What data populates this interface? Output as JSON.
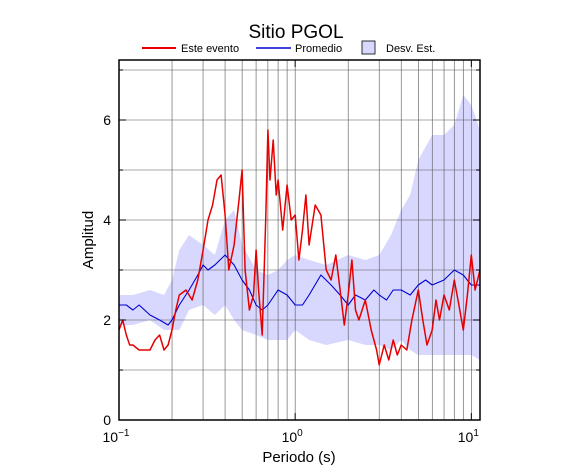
{
  "chart_data": {
    "type": "line",
    "title": "Sitio PGOL",
    "xlabel": "Periodo (s)",
    "ylabel": "Amplitud",
    "x_scale": "log",
    "xlim": [
      0.1,
      11.2
    ],
    "ylim": [
      0,
      7.2
    ],
    "x_ticks": [
      {
        "value": 0.1,
        "base": "10",
        "exp": "−1"
      },
      {
        "value": 1,
        "base": "10",
        "exp": "0"
      },
      {
        "value": 10,
        "base": "10",
        "exp": "1"
      }
    ],
    "y_ticks": [
      {
        "value": 0,
        "label": "0"
      },
      {
        "value": 2,
        "label": "2"
      },
      {
        "value": 4,
        "label": "4"
      },
      {
        "value": 6,
        "label": "6"
      }
    ],
    "y_minor_ticks": [
      1,
      3,
      5,
      7
    ],
    "grid": true,
    "legend_position": "top",
    "legend": [
      {
        "label": "Este evento",
        "kind": "line",
        "color": "#e60000"
      },
      {
        "label": "Promedio",
        "kind": "line",
        "color": "#0000d0"
      },
      {
        "label": "Desv. Est.",
        "kind": "box",
        "color": "#d8d8ff"
      }
    ],
    "band": {
      "name": "Desv. Est.",
      "color": "#d8d8ff",
      "x": [
        0.1,
        0.12,
        0.15,
        0.18,
        0.2,
        0.22,
        0.25,
        0.3,
        0.35,
        0.4,
        0.45,
        0.5,
        0.6,
        0.7,
        0.8,
        0.9,
        1.0,
        1.2,
        1.5,
        2.0,
        2.5,
        3.0,
        3.5,
        4.0,
        4.5,
        5.0,
        6.0,
        7.0,
        8.0,
        9.0,
        10.0,
        11.2
      ],
      "upper": [
        2.5,
        2.5,
        2.6,
        2.5,
        2.8,
        3.4,
        3.7,
        3.5,
        3.3,
        4.0,
        4.2,
        3.5,
        3.0,
        2.9,
        3.0,
        3.2,
        3.3,
        3.2,
        3.1,
        3.3,
        3.2,
        3.3,
        3.7,
        4.2,
        4.5,
        5.2,
        5.7,
        5.7,
        5.9,
        6.5,
        6.3,
        5.8
      ],
      "lower": [
        1.9,
        1.9,
        2.0,
        1.8,
        1.8,
        1.8,
        2.2,
        2.3,
        2.1,
        2.3,
        2.0,
        1.8,
        1.7,
        1.6,
        1.6,
        1.6,
        1.8,
        1.6,
        1.5,
        1.6,
        1.5,
        1.5,
        1.4,
        1.6,
        1.4,
        1.3,
        1.3,
        1.3,
        1.3,
        1.3,
        1.3,
        1.2
      ]
    },
    "series": [
      {
        "name": "Promedio",
        "color": "#0000d0",
        "x": [
          0.1,
          0.11,
          0.12,
          0.13,
          0.15,
          0.17,
          0.19,
          0.2,
          0.22,
          0.25,
          0.28,
          0.3,
          0.32,
          0.35,
          0.4,
          0.45,
          0.5,
          0.55,
          0.6,
          0.65,
          0.7,
          0.8,
          0.9,
          1.0,
          1.1,
          1.2,
          1.4,
          1.6,
          1.8,
          2.0,
          2.2,
          2.5,
          2.8,
          3.0,
          3.3,
          3.6,
          4.0,
          4.5,
          5.0,
          5.5,
          6.0,
          7.0,
          8.0,
          9.0,
          10.0,
          11.2
        ],
        "y": [
          2.3,
          2.3,
          2.2,
          2.3,
          2.1,
          2.0,
          1.9,
          2.0,
          2.3,
          2.6,
          2.9,
          3.1,
          3.0,
          3.1,
          3.3,
          3.1,
          2.8,
          2.6,
          2.3,
          2.2,
          2.3,
          2.6,
          2.5,
          2.3,
          2.3,
          2.5,
          2.9,
          2.7,
          2.5,
          2.3,
          2.5,
          2.4,
          2.6,
          2.5,
          2.4,
          2.6,
          2.6,
          2.5,
          2.7,
          2.8,
          2.7,
          2.8,
          3.0,
          2.9,
          2.7,
          2.7
        ]
      },
      {
        "name": "Este evento",
        "color": "#e60000",
        "x": [
          0.1,
          0.105,
          0.11,
          0.115,
          0.12,
          0.13,
          0.14,
          0.15,
          0.16,
          0.17,
          0.18,
          0.19,
          0.2,
          0.21,
          0.22,
          0.24,
          0.26,
          0.28,
          0.3,
          0.32,
          0.34,
          0.36,
          0.38,
          0.4,
          0.42,
          0.45,
          0.48,
          0.5,
          0.52,
          0.55,
          0.58,
          0.6,
          0.62,
          0.65,
          0.68,
          0.7,
          0.72,
          0.75,
          0.78,
          0.8,
          0.85,
          0.9,
          0.95,
          1.0,
          1.05,
          1.1,
          1.15,
          1.2,
          1.3,
          1.4,
          1.5,
          1.6,
          1.7,
          1.8,
          1.9,
          2.0,
          2.1,
          2.2,
          2.3,
          2.5,
          2.7,
          2.9,
          3.0,
          3.2,
          3.4,
          3.6,
          3.8,
          4.0,
          4.3,
          4.6,
          5.0,
          5.3,
          5.6,
          6.0,
          6.3,
          6.6,
          7.0,
          7.5,
          8.0,
          8.5,
          9.0,
          9.5,
          10.0,
          10.5,
          11.2
        ],
        "y": [
          1.8,
          2.0,
          1.7,
          1.5,
          1.5,
          1.4,
          1.4,
          1.4,
          1.6,
          1.7,
          1.4,
          1.5,
          1.8,
          2.2,
          2.5,
          2.6,
          2.4,
          2.8,
          3.4,
          4.0,
          4.3,
          4.8,
          4.9,
          4.1,
          3.0,
          3.5,
          4.4,
          5.0,
          3.0,
          2.2,
          2.5,
          3.4,
          2.6,
          1.7,
          4.0,
          5.8,
          4.8,
          5.6,
          4.5,
          4.8,
          3.8,
          4.7,
          4.0,
          4.1,
          3.2,
          3.8,
          4.5,
          3.5,
          4.3,
          4.1,
          3.0,
          2.8,
          3.3,
          2.6,
          1.9,
          2.5,
          3.2,
          2.2,
          2.0,
          2.4,
          1.8,
          1.4,
          1.1,
          1.5,
          1.2,
          1.6,
          1.3,
          1.5,
          1.4,
          2.0,
          2.6,
          2.0,
          1.5,
          1.8,
          2.4,
          2.0,
          2.5,
          2.2,
          2.8,
          2.3,
          1.8,
          2.5,
          3.3,
          2.6,
          3.0
        ]
      }
    ]
  }
}
